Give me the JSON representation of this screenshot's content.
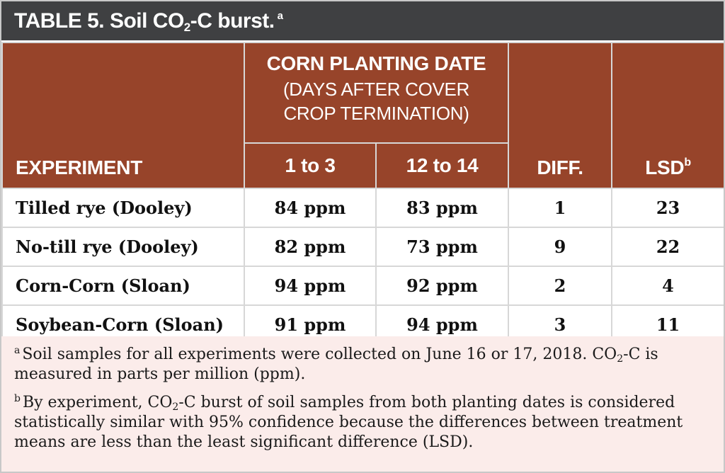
{
  "title": {
    "prefix": "TABLE 5. Soil CO",
    "sub": "2",
    "suffix": "-C burst.",
    "footnote_mark": "a"
  },
  "header": {
    "experiment": "EXPERIMENT",
    "group_title": "CORN PLANTING DATE",
    "group_subtitle_line1": "(DAYS AFTER COVER",
    "group_subtitle_line2": "CROP TERMINATION)",
    "col1": "1 to 3",
    "col2": "12 to 14",
    "diff": "DIFF.",
    "lsd": "LSD",
    "lsd_mark": "b"
  },
  "rows": [
    {
      "experiment": "Tilled rye (Dooley)",
      "c1": "84 ppm",
      "c2": "83 ppm",
      "diff": "1",
      "lsd": "23"
    },
    {
      "experiment": "No-till rye (Dooley)",
      "c1": "82 ppm",
      "c2": "73 ppm",
      "diff": "9",
      "lsd": "22"
    },
    {
      "experiment": "Corn-Corn (Sloan)",
      "c1": "94 ppm",
      "c2": "92 ppm",
      "diff": "2",
      "lsd": "4"
    },
    {
      "experiment": "Soybean-Corn (Sloan)",
      "c1": "91 ppm",
      "c2": "94 ppm",
      "diff": "3",
      "lsd": "11"
    }
  ],
  "notes": {
    "a": {
      "mark": "a",
      "part1": "Soil samples for all experiments were collected on June 16 or 17, 2018. CO",
      "sub": "2",
      "part2": "-C is measured in parts per million (ppm)."
    },
    "b": {
      "mark": "b",
      "part1": "By experiment, CO",
      "sub": "2",
      "part2": "-C burst of soil samples from both planting dates is considered statistically similar with 95% confidence because the differences between treatment means are less than the least significant difference (LSD)."
    }
  }
}
